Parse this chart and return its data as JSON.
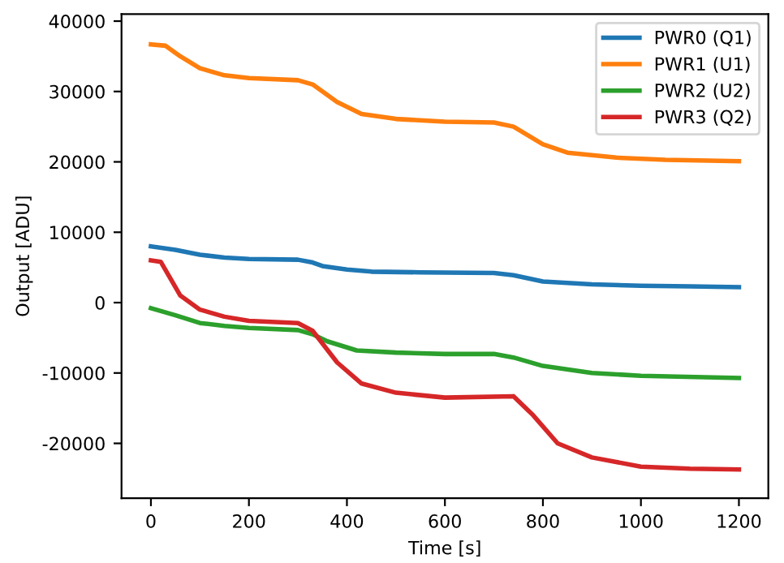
{
  "chart_data": {
    "type": "line",
    "xlabel": "Time [s]",
    "ylabel": "Output [ADU]",
    "xlim": [
      -60,
      1260
    ],
    "xticks": [
      0,
      200,
      400,
      600,
      800,
      1000,
      1200
    ],
    "ylim": [
      -27800,
      41000
    ],
    "yticks": [
      -20000,
      -10000,
      0,
      10000,
      20000,
      30000,
      40000
    ],
    "grid": false,
    "legend": "top right",
    "marker": "none",
    "line_style": "solid",
    "series": [
      {
        "name": "PWR0 (Q1)",
        "color": "#1f77b4",
        "x": [
          0,
          50,
          100,
          150,
          200,
          300,
          330,
          350,
          400,
          450,
          550,
          700,
          740,
          800,
          900,
          1000,
          1100,
          1200
        ],
        "values": [
          8000,
          7500,
          6800,
          6400,
          6200,
          6100,
          5700,
          5200,
          4700,
          4400,
          4300,
          4200,
          3900,
          3000,
          2600,
          2400,
          2300,
          2200
        ]
      },
      {
        "name": "PWR1 (U1)",
        "color": "#ff7f0e",
        "x": [
          0,
          30,
          60,
          100,
          150,
          200,
          300,
          330,
          380,
          430,
          500,
          600,
          700,
          740,
          800,
          850,
          950,
          1050,
          1200
        ],
        "values": [
          36700,
          36500,
          35000,
          33300,
          32300,
          31900,
          31600,
          31000,
          28500,
          26800,
          26100,
          25700,
          25600,
          25000,
          22500,
          21300,
          20600,
          20300,
          20100
        ]
      },
      {
        "name": "PWR2 (U2)",
        "color": "#2ca02c",
        "x": [
          0,
          50,
          100,
          150,
          200,
          300,
          330,
          360,
          420,
          500,
          600,
          700,
          740,
          800,
          900,
          1000,
          1200
        ],
        "values": [
          -800,
          -1800,
          -2900,
          -3300,
          -3600,
          -3900,
          -4500,
          -5500,
          -6800,
          -7100,
          -7300,
          -7300,
          -7800,
          -9000,
          -10000,
          -10400,
          -10700
        ]
      },
      {
        "name": "PWR3 (Q2)",
        "color": "#d62728",
        "x": [
          0,
          20,
          60,
          100,
          150,
          200,
          300,
          330,
          380,
          430,
          500,
          600,
          740,
          780,
          830,
          900,
          1000,
          1100,
          1200
        ],
        "values": [
          6000,
          5800,
          1000,
          -1000,
          -2000,
          -2600,
          -2900,
          -4000,
          -8500,
          -11500,
          -12800,
          -13500,
          -13300,
          -16000,
          -20000,
          -22000,
          -23300,
          -23600,
          -23700
        ]
      }
    ]
  }
}
